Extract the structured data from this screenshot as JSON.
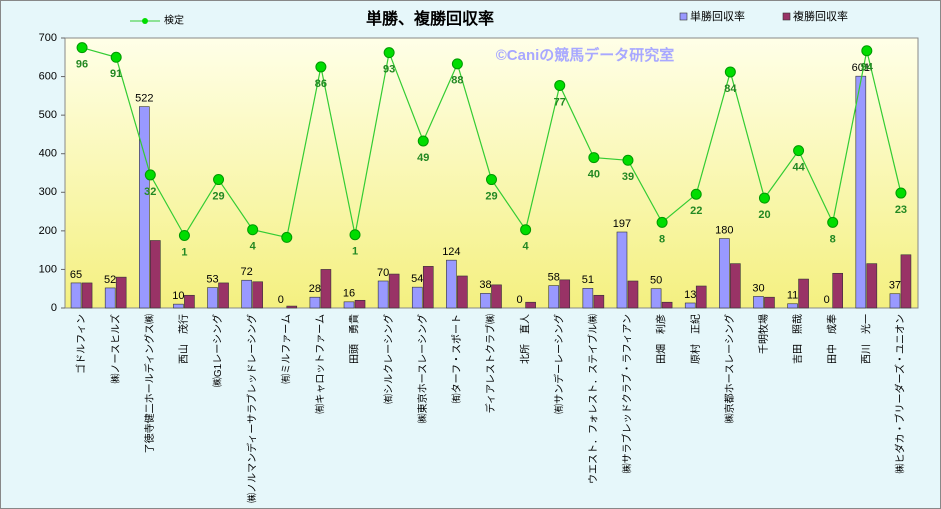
{
  "chart_data": {
    "type": "bar-line",
    "title": "単勝、複勝回収率",
    "watermark": "©Caniの競馬データ研究室",
    "categories": [
      "ゴドルフィン",
      "㈱ノースヒルズ",
      "了徳寺健二ホールディングス㈱",
      "西山　茂行",
      "㈱G1レーシング",
      "㈱ノルマンディーサラブレッドレーシング",
      "㈲ミルファーム",
      "㈲キャロットファーム",
      "田頭　勇貴",
      "㈲シルクレーシング",
      "㈱東京ホースレーシング",
      "㈲ターフ・スポート",
      "ディアレストクラブ㈱",
      "北所　直人",
      "㈲サンデーレーシング",
      "ウエスト．フォレスト．ステイブル㈱",
      "㈱サラブレッドクラブ・ラフィアン",
      "田畑　利彦",
      "原村　正紀",
      "㈱京都ホースレーシング",
      "千明牧場",
      "吉田　照哉",
      "田中　成奉",
      "西川　光一",
      "㈱ヒダカ・ブリーダーズ・ユニオン"
    ],
    "series": [
      {
        "name": "単勝回収率",
        "color": "#9999ff",
        "values": [
          65,
          52,
          522,
          10,
          53,
          72,
          0,
          28,
          16,
          70,
          54,
          124,
          38,
          0,
          58,
          51,
          197,
          50,
          13,
          180,
          30,
          11,
          0,
          601,
          37
        ]
      },
      {
        "name": "複勝回収率",
        "color": "#993366",
        "values": [
          65,
          80,
          175,
          33,
          65,
          68,
          5,
          100,
          20,
          88,
          108,
          83,
          60,
          15,
          73,
          33,
          70,
          15,
          57,
          115,
          28,
          75,
          90,
          115,
          138
        ]
      },
      {
        "name": "検定",
        "color": "#33cc33",
        "line": true,
        "values": [
          675,
          650,
          345,
          188,
          333,
          203,
          183,
          625,
          190,
          662,
          433,
          633,
          333,
          203,
          577,
          390,
          383,
          222,
          295,
          612,
          285,
          408,
          222,
          667,
          298
        ],
        "annotations": [
          "96",
          "91",
          "32",
          "1",
          "29",
          "4",
          null,
          "86",
          "1",
          "93",
          "49",
          "88",
          "29",
          "4",
          "77",
          "40",
          "39",
          "8",
          "22",
          "84",
          "20",
          "44",
          "8",
          "94",
          "23"
        ]
      }
    ],
    "ylim": [
      0,
      700
    ],
    "yticks": [
      0,
      100,
      200,
      300,
      400,
      500,
      600,
      700
    ],
    "grid": false
  }
}
